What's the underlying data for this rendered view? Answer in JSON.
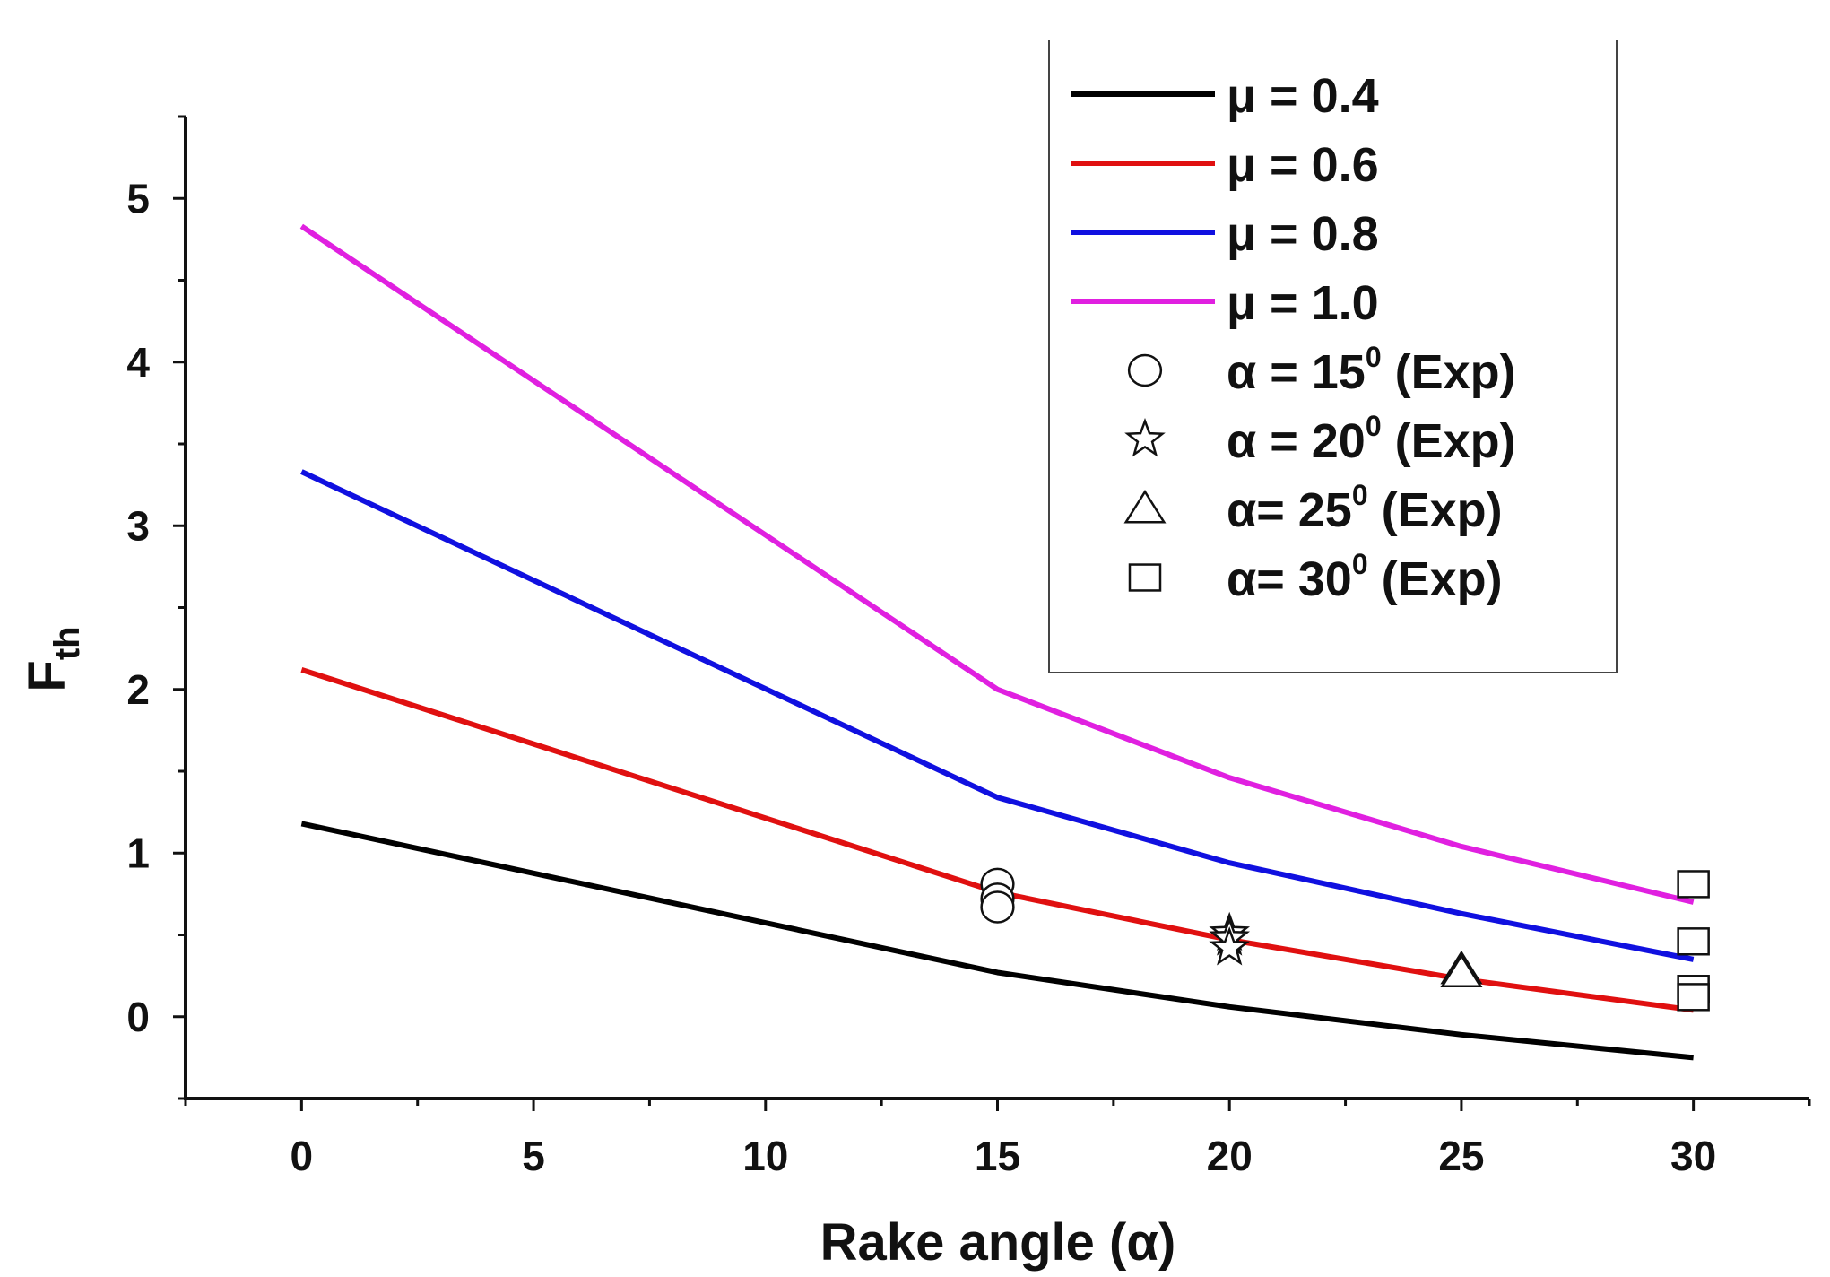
{
  "chart_data": {
    "type": "line",
    "title": "",
    "xlabel": "Rake angle (α)",
    "ylabel_main": "F",
    "ylabel_sub": "th",
    "xlim": [
      -2.5,
      32.5
    ],
    "ylim": [
      -0.5,
      5.5
    ],
    "xticks": [
      0,
      5,
      10,
      15,
      20,
      25,
      30
    ],
    "xtick_labels": [
      "0",
      "5",
      "10",
      "15",
      "20",
      "25",
      "30"
    ],
    "yticks": [
      0,
      1,
      2,
      3,
      4,
      5
    ],
    "ytick_labels": [
      "0",
      "1",
      "2",
      "3",
      "4",
      "5"
    ],
    "x": [
      0,
      15,
      20,
      25,
      30
    ],
    "series": [
      {
        "name": "μ = 0.4",
        "color": "#000000",
        "values": [
          1.18,
          0.27,
          0.06,
          -0.11,
          -0.25
        ]
      },
      {
        "name": "μ = 0.6",
        "color": "#e01010",
        "values": [
          2.12,
          0.76,
          0.47,
          0.23,
          0.04
        ]
      },
      {
        "name": "μ = 0.8",
        "color": "#1010e0",
        "values": [
          3.33,
          1.34,
          0.94,
          0.63,
          0.35
        ]
      },
      {
        "name": "μ = 1.0",
        "color": "#e020e0",
        "values": [
          4.83,
          2.0,
          1.46,
          1.04,
          0.7
        ]
      }
    ],
    "experimental": [
      {
        "marker": "circle",
        "label_prefix": "α = 15",
        "label_sup": "0",
        "label_suffix": " (Exp)",
        "points": [
          [
            15,
            0.81
          ],
          [
            15,
            0.72
          ],
          [
            15,
            0.67
          ]
        ]
      },
      {
        "marker": "star",
        "label_prefix": "α = 20",
        "label_sup": "0",
        "label_suffix": " (Exp)",
        "points": [
          [
            20,
            0.51
          ],
          [
            20,
            0.48
          ],
          [
            20,
            0.42
          ]
        ]
      },
      {
        "marker": "triangle",
        "label_prefix": "α= 25",
        "label_sup": "0",
        "label_suffix": " (Exp)",
        "points": [
          [
            25,
            0.29
          ],
          [
            25,
            0.27
          ]
        ]
      },
      {
        "marker": "square",
        "label_prefix": "α= 30",
        "label_sup": "0",
        "label_suffix": " (Exp)",
        "points": [
          [
            30,
            0.81
          ],
          [
            30,
            0.46
          ],
          [
            30,
            0.17
          ],
          [
            30,
            0.12
          ]
        ]
      }
    ],
    "legend_position": "top-right"
  }
}
